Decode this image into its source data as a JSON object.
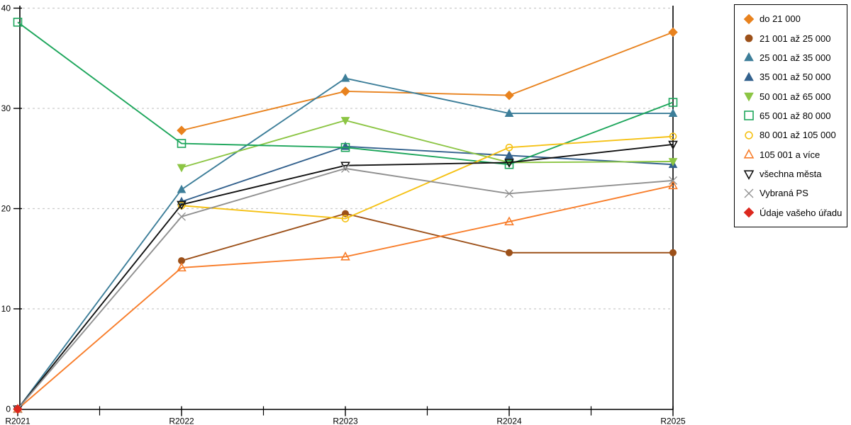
{
  "chart_data": {
    "type": "line",
    "title": "",
    "xlabel": "",
    "ylabel": "",
    "categories": [
      "R2021",
      "R2022",
      "R2023",
      "R2024",
      "R2025"
    ],
    "ylim": [
      0,
      40
    ],
    "yticks": [
      0,
      10,
      20,
      30,
      40
    ],
    "grid": "horizontal-dashed",
    "legend_position": "right",
    "axis_color": "#000000",
    "grid_color": "#c9c9c9",
    "series": [
      {
        "name": "do 21 000",
        "color": "#e8821e",
        "marker": "diamond",
        "open": false,
        "values": [
          null,
          27.8,
          31.7,
          31.3,
          37.6
        ]
      },
      {
        "name": "21 001 až 25 000",
        "color": "#9c5019",
        "marker": "circle",
        "open": false,
        "values": [
          null,
          14.8,
          19.5,
          15.6,
          15.6
        ]
      },
      {
        "name": "25 001 až 35 000",
        "color": "#3d7e99",
        "marker": "triangle-up",
        "open": false,
        "values": [
          0,
          21.9,
          33.0,
          29.5,
          29.5
        ]
      },
      {
        "name": "35 001 až 50 000",
        "color": "#33618d",
        "marker": "triangle-up",
        "open": false,
        "values": [
          null,
          20.7,
          26.2,
          25.3,
          24.4
        ]
      },
      {
        "name": "50 001 až 65 000",
        "color": "#8cc544",
        "marker": "triangle-down",
        "open": false,
        "values": [
          null,
          24.1,
          28.8,
          24.6,
          24.7
        ]
      },
      {
        "name": "65 001 až 80 000",
        "color": "#1ea65c",
        "marker": "square",
        "open": true,
        "values": [
          38.6,
          26.5,
          26.1,
          24.4,
          30.6
        ]
      },
      {
        "name": "80 001 až 105 000",
        "color": "#f5c114",
        "marker": "circle",
        "open": true,
        "values": [
          null,
          20.3,
          19.0,
          26.1,
          27.2
        ]
      },
      {
        "name": "105 001 a více",
        "color": "#f87d2a",
        "marker": "triangle-up",
        "open": true,
        "values": [
          0,
          14.1,
          15.2,
          18.7,
          22.3
        ]
      },
      {
        "name": "všechna města",
        "color": "#111111",
        "marker": "triangle-down",
        "open": true,
        "values": [
          0,
          20.4,
          24.3,
          24.6,
          26.4
        ]
      },
      {
        "name": "Vybraná PS",
        "color": "#909090",
        "marker": "x",
        "open": true,
        "values": [
          0,
          19.2,
          24.0,
          21.5,
          22.8
        ]
      },
      {
        "name": "Údaje vašeho úřadu",
        "color": "#dc281e",
        "marker": "diamond",
        "open": false,
        "values": [
          0,
          null,
          null,
          null,
          null
        ]
      }
    ]
  }
}
